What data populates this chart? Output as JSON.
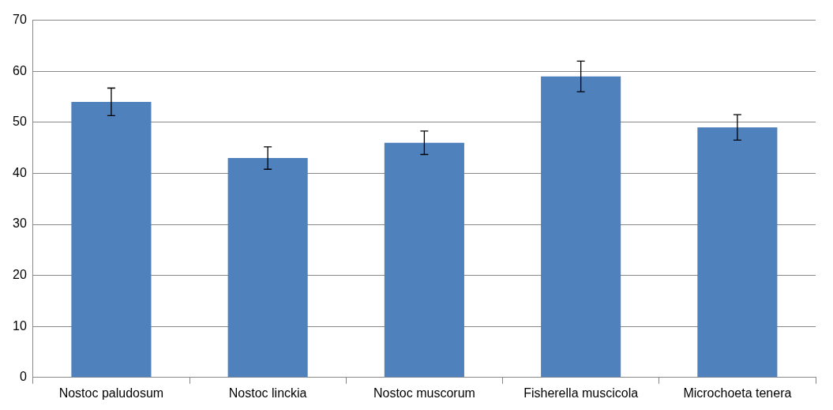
{
  "chart_data": {
    "type": "bar",
    "categories": [
      "Nostoc paludosum",
      "Nostoc linckia",
      "Nostoc muscorum",
      "Fisherella muscicola",
      "Microchoeta tenera"
    ],
    "values": [
      54,
      43,
      46,
      59,
      49
    ],
    "errors": [
      2.7,
      2.2,
      2.3,
      3,
      2.5
    ],
    "color": "#4f81bd",
    "ylim": [
      0,
      70
    ],
    "yticks": [
      0,
      10,
      20,
      30,
      40,
      50,
      60,
      70
    ],
    "grid": "y"
  }
}
